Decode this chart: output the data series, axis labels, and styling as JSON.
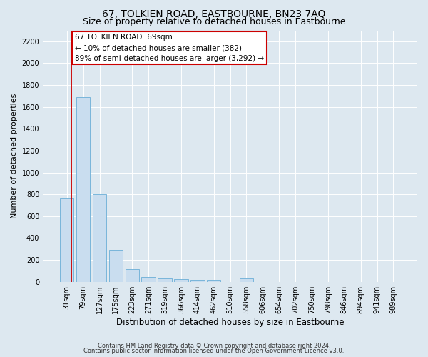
{
  "title": "67, TOLKIEN ROAD, EASTBOURNE, BN23 7AQ",
  "subtitle": "Size of property relative to detached houses in Eastbourne",
  "xlabel": "Distribution of detached houses by size in Eastbourne",
  "ylabel": "Number of detached properties",
  "categories": [
    "31sqm",
    "79sqm",
    "127sqm",
    "175sqm",
    "223sqm",
    "271sqm",
    "319sqm",
    "366sqm",
    "414sqm",
    "462sqm",
    "510sqm",
    "558sqm",
    "606sqm",
    "654sqm",
    "702sqm",
    "750sqm",
    "798sqm",
    "846sqm",
    "894sqm",
    "941sqm",
    "989sqm"
  ],
  "values": [
    760,
    1690,
    800,
    295,
    115,
    42,
    30,
    25,
    18,
    15,
    0,
    30,
    0,
    0,
    0,
    0,
    0,
    0,
    0,
    0,
    0
  ],
  "bar_color": "#c9ddef",
  "bar_edge_color": "#6aaed6",
  "annotation_title": "67 TOLKIEN ROAD: 69sqm",
  "annotation_line1": "← 10% of detached houses are smaller (382)",
  "annotation_line2": "89% of semi-detached houses are larger (3,292) →",
  "annotation_box_facecolor": "#ffffff",
  "annotation_box_edgecolor": "#cc0000",
  "vline_color": "#cc0000",
  "ylim": [
    0,
    2300
  ],
  "yticks": [
    0,
    200,
    400,
    600,
    800,
    1000,
    1200,
    1400,
    1600,
    1800,
    2000,
    2200
  ],
  "footer1": "Contains HM Land Registry data © Crown copyright and database right 2024.",
  "footer2": "Contains public sector information licensed under the Open Government Licence v3.0.",
  "bg_color": "#dde8f0",
  "plot_bg_color": "#dde8f0",
  "title_fontsize": 10,
  "subtitle_fontsize": 9,
  "tick_fontsize": 7,
  "ylabel_fontsize": 8,
  "xlabel_fontsize": 8.5,
  "annotation_fontsize": 7.5,
  "footer_fontsize": 6
}
